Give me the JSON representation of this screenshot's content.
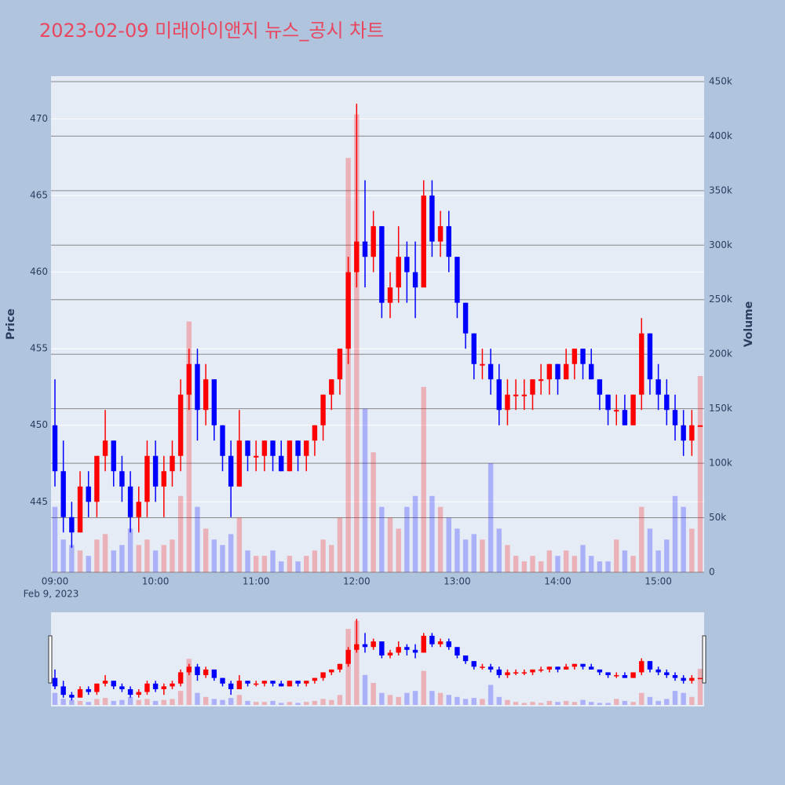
{
  "chart_data": {
    "type": "candlestick",
    "title": "2023-02-09 미래아이앤지 뉴스_공시 차트",
    "x_date_label": "Feb 9, 2023",
    "yaxis_title": "Price",
    "y2axis_title": "Volume",
    "x": [
      "09:00",
      "09:05",
      "09:10",
      "09:15",
      "09:20",
      "09:25",
      "09:30",
      "09:35",
      "09:40",
      "09:45",
      "09:50",
      "09:55",
      "10:00",
      "10:05",
      "10:10",
      "10:15",
      "10:20",
      "10:25",
      "10:30",
      "10:35",
      "10:40",
      "10:45",
      "10:50",
      "10:55",
      "11:00",
      "11:05",
      "11:10",
      "11:15",
      "11:20",
      "11:25",
      "11:30",
      "11:35",
      "11:40",
      "11:45",
      "11:50",
      "11:55",
      "12:00",
      "12:05",
      "12:10",
      "12:15",
      "12:20",
      "12:25",
      "12:30",
      "12:35",
      "12:40",
      "12:45",
      "12:50",
      "12:55",
      "13:00",
      "13:05",
      "13:10",
      "13:15",
      "13:20",
      "13:25",
      "13:30",
      "13:35",
      "13:40",
      "13:45",
      "13:50",
      "13:55",
      "14:00",
      "14:05",
      "14:10",
      "14:15",
      "14:20",
      "14:25",
      "14:30",
      "14:35",
      "14:40",
      "14:45",
      "14:50",
      "14:55",
      "15:00",
      "15:05",
      "15:10",
      "15:15",
      "15:20",
      "15:25"
    ],
    "open": [
      450,
      447,
      444,
      443,
      446,
      445,
      448,
      449,
      447,
      446,
      444,
      445,
      448,
      446,
      447,
      448,
      452,
      454,
      451,
      453,
      450,
      448,
      446,
      449,
      448,
      448,
      449,
      448,
      447,
      449,
      448,
      449,
      450,
      452,
      453,
      455,
      460,
      462,
      461,
      463,
      458,
      459,
      461,
      460,
      459,
      465,
      462,
      463,
      461,
      458,
      456,
      454,
      454,
      453,
      451,
      452,
      452,
      452,
      453,
      453,
      454,
      453,
      454,
      455,
      454,
      453,
      452,
      451,
      451,
      450,
      452,
      456,
      453,
      452,
      451,
      450,
      449,
      450
    ],
    "high": [
      453,
      449,
      445,
      447,
      447,
      448,
      451,
      449,
      448,
      447,
      446,
      449,
      449,
      448,
      449,
      453,
      455,
      455,
      454,
      453,
      450,
      449,
      451,
      449,
      449,
      449,
      449,
      449,
      449,
      449,
      449,
      450,
      452,
      453,
      455,
      461,
      471,
      466,
      464,
      463,
      460,
      463,
      462,
      462,
      466,
      466,
      464,
      464,
      461,
      458,
      456,
      455,
      455,
      454,
      453,
      453,
      453,
      453,
      454,
      454,
      454,
      455,
      455,
      455,
      455,
      453,
      452,
      452,
      452,
      452,
      457,
      456,
      454,
      453,
      452,
      451,
      451,
      450
    ],
    "low": [
      446,
      443,
      442,
      443,
      444,
      444,
      447,
      446,
      445,
      443,
      443,
      444,
      445,
      444,
      446,
      447,
      451,
      449,
      450,
      449,
      447,
      444,
      446,
      447,
      447,
      447,
      447,
      447,
      447,
      447,
      447,
      448,
      449,
      451,
      452,
      454,
      459,
      459,
      460,
      457,
      457,
      458,
      458,
      457,
      459,
      461,
      461,
      460,
      457,
      455,
      453,
      453,
      452,
      450,
      450,
      451,
      451,
      451,
      452,
      452,
      452,
      453,
      453,
      453,
      453,
      451,
      450,
      450,
      450,
      450,
      451,
      452,
      451,
      450,
      449,
      448,
      448,
      450
    ],
    "close": [
      447,
      444,
      443,
      446,
      445,
      448,
      449,
      447,
      446,
      444,
      445,
      448,
      446,
      447,
      448,
      452,
      454,
      451,
      453,
      450,
      448,
      446,
      449,
      448,
      448,
      449,
      448,
      447,
      449,
      448,
      449,
      450,
      452,
      453,
      455,
      460,
      462,
      461,
      463,
      458,
      459,
      461,
      460,
      459,
      465,
      462,
      463,
      461,
      458,
      456,
      454,
      454,
      453,
      451,
      452,
      452,
      452,
      453,
      453,
      454,
      453,
      454,
      455,
      454,
      453,
      452,
      451,
      451,
      450,
      452,
      456,
      453,
      452,
      451,
      450,
      449,
      450,
      450
    ],
    "volume": [
      60000,
      30000,
      25000,
      20000,
      15000,
      30000,
      35000,
      20000,
      25000,
      40000,
      25000,
      30000,
      20000,
      25000,
      30000,
      70000,
      230000,
      60000,
      40000,
      30000,
      25000,
      35000,
      50000,
      20000,
      15000,
      15000,
      20000,
      10000,
      15000,
      10000,
      15000,
      20000,
      30000,
      25000,
      50000,
      380000,
      420000,
      150000,
      110000,
      60000,
      50000,
      40000,
      60000,
      70000,
      170000,
      70000,
      60000,
      50000,
      40000,
      30000,
      35000,
      30000,
      100000,
      40000,
      25000,
      15000,
      10000,
      15000,
      10000,
      20000,
      15000,
      20000,
      15000,
      25000,
      15000,
      10000,
      10000,
      30000,
      20000,
      15000,
      60000,
      40000,
      20000,
      30000,
      70000,
      60000,
      40000,
      180000
    ],
    "increasing_color": "#ff0000",
    "decreasing_color": "#0000ff",
    "ylim": [
      440.4,
      472.8
    ],
    "yticks": [
      445,
      450,
      455,
      460,
      465,
      470
    ],
    "y2lim": [
      0,
      455000
    ],
    "y2ticks": [
      0,
      {
        "value": 50000,
        "label": "50k"
      },
      {
        "value": 100000,
        "label": "100k"
      },
      {
        "value": 150000,
        "label": "150k"
      },
      {
        "value": 200000,
        "label": "200k"
      },
      {
        "value": 250000,
        "label": "250k"
      },
      {
        "value": 300000,
        "label": "300k"
      },
      {
        "value": 350000,
        "label": "350k"
      },
      {
        "value": 400000,
        "label": "400k"
      },
      {
        "value": 450000,
        "label": "450k"
      }
    ],
    "xticks": [
      "09:00",
      "10:00",
      "11:00",
      "12:00",
      "13:00",
      "14:00",
      "15:00"
    ],
    "grid": true
  }
}
